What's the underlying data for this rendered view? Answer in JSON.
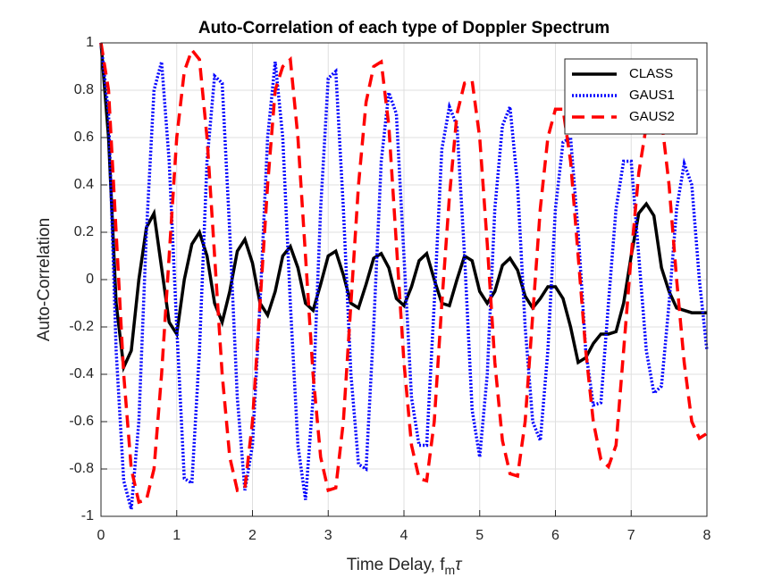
{
  "chart_data": {
    "type": "line",
    "title": "Auto-Correlation of each type of Doppler Spectrum",
    "xlabel": [
      "Time Delay, f",
      "m",
      "τ"
    ],
    "ylabel": "Auto-Correlation",
    "x": [
      0,
      0.1,
      0.2,
      0.3,
      0.4,
      0.5,
      0.6,
      0.7,
      0.8,
      0.9,
      1,
      1.1,
      1.2,
      1.3,
      1.4,
      1.5,
      1.6,
      1.7,
      1.8,
      1.9,
      2,
      2.1,
      2.2,
      2.3,
      2.4,
      2.5,
      2.6,
      2.7,
      2.8,
      2.9,
      3,
      3.1,
      3.2,
      3.3,
      3.4,
      3.5,
      3.6,
      3.7,
      3.8,
      3.9,
      4,
      4.1,
      4.2,
      4.3,
      4.4,
      4.5,
      4.6,
      4.7,
      4.8,
      4.9,
      5,
      5.1,
      5.2,
      5.3,
      5.4,
      5.5,
      5.6,
      5.7,
      5.8,
      5.9,
      6,
      6.1,
      6.2,
      6.3,
      6.4,
      6.5,
      6.6,
      6.7,
      6.8,
      6.9,
      7,
      7.1,
      7.2,
      7.3,
      7.4,
      7.5,
      7.6,
      7.7,
      7.8,
      7.9,
      8
    ],
    "series": [
      {
        "name": "CLASS",
        "color": "#000000",
        "linestyle": "solid",
        "values": [
          1,
          0.6,
          -0.1,
          -0.37,
          -0.3,
          0,
          0.22,
          0.28,
          0.05,
          -0.18,
          -0.23,
          0,
          0.15,
          0.2,
          0.1,
          -0.1,
          -0.18,
          -0.05,
          0.12,
          0.17,
          0.07,
          -0.1,
          -0.15,
          -0.05,
          0.1,
          0.14,
          0.05,
          -0.1,
          -0.13,
          -0.02,
          0.1,
          0.12,
          0.02,
          -0.1,
          -0.12,
          -0.02,
          0.09,
          0.11,
          0.05,
          -0.08,
          -0.11,
          -0.03,
          0.08,
          0.11,
          0,
          -0.1,
          -0.11,
          0,
          0.1,
          0.08,
          -0.05,
          -0.1,
          -0.05,
          0.06,
          0.09,
          0.04,
          -0.07,
          -0.12,
          -0.08,
          -0.03,
          -0.03,
          -0.08,
          -0.2,
          -0.35,
          -0.33,
          -0.27,
          -0.23,
          -0.23,
          -0.22,
          -0.1,
          0.1,
          0.28,
          0.32,
          0.27,
          0.05,
          -0.05,
          -0.12,
          -0.13,
          -0.14,
          -0.14,
          -0.14
        ]
      },
      {
        "name": "GAUS1",
        "color": "#0000ff",
        "linestyle": "dotted",
        "values": [
          1,
          0.7,
          -0.3,
          -0.85,
          -0.97,
          -0.6,
          0.2,
          0.8,
          0.92,
          0.5,
          -0.2,
          -0.84,
          -0.86,
          -0.3,
          0.5,
          0.86,
          0.83,
          0.2,
          -0.5,
          -0.89,
          -0.7,
          -0.1,
          0.6,
          0.92,
          0.6,
          -0.1,
          -0.7,
          -0.93,
          -0.5,
          0.3,
          0.85,
          0.88,
          0.3,
          -0.4,
          -0.78,
          -0.8,
          -0.2,
          0.5,
          0.79,
          0.7,
          0.1,
          -0.5,
          -0.7,
          -0.7,
          -0.1,
          0.55,
          0.73,
          0.65,
          0.1,
          -0.55,
          -0.75,
          -0.4,
          0.3,
          0.65,
          0.73,
          0.4,
          -0.2,
          -0.6,
          -0.68,
          -0.3,
          0.3,
          0.58,
          0.6,
          0.2,
          -0.3,
          -0.53,
          -0.52,
          -0.1,
          0.3,
          0.5,
          0.5,
          0.1,
          -0.3,
          -0.48,
          -0.45,
          -0.1,
          0.3,
          0.49,
          0.4,
          0,
          -0.3
        ]
      },
      {
        "name": "GAUS2",
        "color": "#ff0000",
        "linestyle": "dashed",
        "values": [
          1,
          0.8,
          0.2,
          -0.4,
          -0.8,
          -0.94,
          -0.93,
          -0.8,
          -0.4,
          0.1,
          0.6,
          0.88,
          0.97,
          0.93,
          0.6,
          0.1,
          -0.4,
          -0.75,
          -0.89,
          -0.88,
          -0.6,
          -0.1,
          0.4,
          0.8,
          0.9,
          0.93,
          0.6,
          0.1,
          -0.4,
          -0.75,
          -0.89,
          -0.88,
          -0.6,
          -0.1,
          0.4,
          0.75,
          0.9,
          0.92,
          0.65,
          0.15,
          -0.35,
          -0.7,
          -0.84,
          -0.85,
          -0.6,
          -0.1,
          0.35,
          0.7,
          0.83,
          0.84,
          0.6,
          0.15,
          -0.35,
          -0.68,
          -0.82,
          -0.83,
          -0.6,
          -0.15,
          0.3,
          0.6,
          0.72,
          0.72,
          0.5,
          0.1,
          -0.3,
          -0.6,
          -0.76,
          -0.79,
          -0.7,
          -0.3,
          0.1,
          0.45,
          0.65,
          0.7,
          0.68,
          0.4,
          0,
          -0.35,
          -0.6,
          -0.67,
          -0.65
        ]
      }
    ],
    "xlim": [
      0,
      8
    ],
    "xticks": [
      0,
      1,
      2,
      3,
      4,
      5,
      6,
      7,
      8
    ],
    "ylim": [
      -1,
      1
    ],
    "yticks": [
      -1,
      -0.8,
      -0.6,
      -0.4,
      -0.2,
      0,
      0.2,
      0.4,
      0.6,
      0.8,
      1
    ],
    "grid": true,
    "legend": "northeast"
  }
}
